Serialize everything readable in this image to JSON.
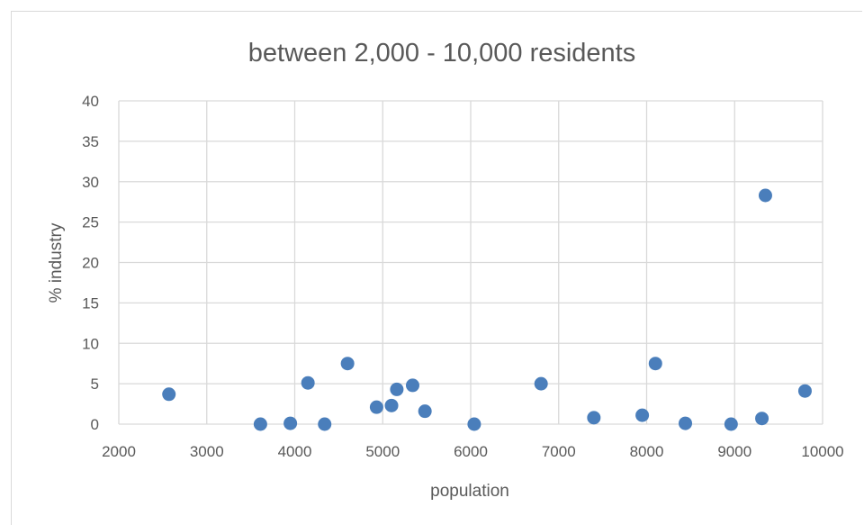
{
  "chart_data": {
    "type": "scatter",
    "title": "between 2,000 - 10,000 residents",
    "xlabel": "population",
    "ylabel": "% industry",
    "xlim": [
      2000,
      10000
    ],
    "ylim": [
      0,
      40
    ],
    "x_ticks": [
      2000,
      3000,
      4000,
      5000,
      6000,
      7000,
      8000,
      9000,
      10000
    ],
    "y_ticks": [
      0,
      5,
      10,
      15,
      20,
      25,
      30,
      35,
      40
    ],
    "grid": true,
    "legend": "none",
    "marker_color": "#4a7ebb",
    "series": [
      {
        "points": [
          {
            "x": 2570,
            "y": 3.7
          },
          {
            "x": 3610,
            "y": 0.0
          },
          {
            "x": 3950,
            "y": 0.1
          },
          {
            "x": 4150,
            "y": 5.1
          },
          {
            "x": 4340,
            "y": 0.0
          },
          {
            "x": 4600,
            "y": 7.5
          },
          {
            "x": 4930,
            "y": 2.1
          },
          {
            "x": 5100,
            "y": 2.3
          },
          {
            "x": 5160,
            "y": 4.3
          },
          {
            "x": 5340,
            "y": 4.8
          },
          {
            "x": 5480,
            "y": 1.6
          },
          {
            "x": 6040,
            "y": 0.0
          },
          {
            "x": 6800,
            "y": 5.0
          },
          {
            "x": 7400,
            "y": 0.8
          },
          {
            "x": 7950,
            "y": 1.1
          },
          {
            "x": 8100,
            "y": 7.5
          },
          {
            "x": 8440,
            "y": 0.1
          },
          {
            "x": 8960,
            "y": 0.0
          },
          {
            "x": 9310,
            "y": 0.7
          },
          {
            "x": 9350,
            "y": 28.3
          },
          {
            "x": 9800,
            "y": 4.1
          }
        ]
      }
    ]
  }
}
